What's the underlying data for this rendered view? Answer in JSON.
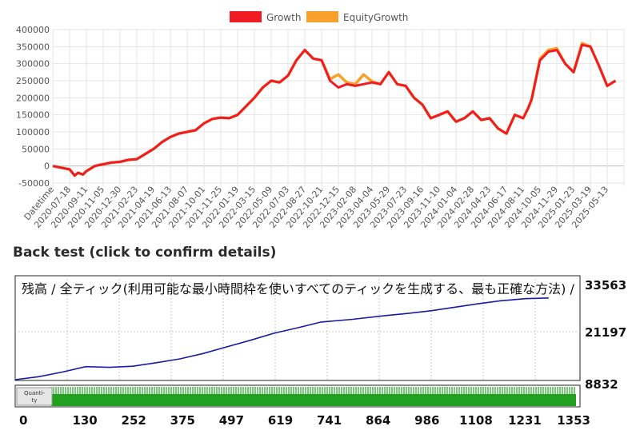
{
  "chart_data": [
    {
      "type": "line",
      "legend": {
        "position": "top",
        "entries": [
          {
            "name": "Growth",
            "color": "#f01c24"
          },
          {
            "name": "EquityGrowth",
            "color": "#f7a12c"
          }
        ]
      },
      "x_tick_labels": [
        "Datetime",
        "2020-07-18",
        "2020-09-11",
        "2020-11-05",
        "2020-12-30",
        "2021-02-23",
        "2021-04-19",
        "2021-06-13",
        "2021-08-07",
        "2021-10-01",
        "2021-11-25",
        "2022-01-19",
        "2022-03-15",
        "2022-05-09",
        "2022-07-03",
        "2022-08-27",
        "2022-10-21",
        "2022-12-15",
        "2023-02-08",
        "2023-04-04",
        "2023-05-29",
        "2023-07-23",
        "2023-09-16",
        "2023-11-10",
        "2024-01-04",
        "2024-02-28",
        "2024-04-23",
        "2024-06-17",
        "2024-08-11",
        "2024-10-05",
        "2024-11-29",
        "2025-01-23",
        "2025-03-19",
        "2025-05-13"
      ],
      "y_ticks": [
        400000,
        350000,
        300000,
        250000,
        200000,
        150000,
        100000,
        50000,
        0,
        -50000
      ],
      "ylim": [
        -50000,
        400000
      ],
      "grid": true,
      "series": [
        {
          "name": "Growth",
          "color": "#f01c24",
          "x": [
            0,
            0.5,
            1,
            1.3,
            1.5,
            1.8,
            2,
            2.5,
            3,
            3.5,
            4,
            4.5,
            5,
            5.5,
            6,
            6.5,
            7,
            7.5,
            8,
            8.5,
            9,
            9.5,
            10,
            10.5,
            11,
            11.5,
            12,
            12.5,
            13,
            13.5,
            14,
            14.5,
            15,
            15.5,
            16,
            16.5,
            17,
            17.5,
            18,
            18.5,
            19,
            19.5,
            20,
            20.5,
            21,
            21.5,
            22,
            22.5,
            23,
            23.5,
            24,
            24.5,
            25,
            25.5,
            26,
            26.5,
            27,
            27.5,
            28,
            28.3,
            28.5,
            29,
            29.5,
            30,
            30.5,
            31,
            31.5,
            32,
            32.5,
            33,
            33.5
          ],
          "values": [
            0,
            -5000,
            -10000,
            -28000,
            -20000,
            -25000,
            -15000,
            0,
            5000,
            10000,
            12000,
            18000,
            20000,
            35000,
            50000,
            70000,
            85000,
            95000,
            100000,
            105000,
            125000,
            138000,
            142000,
            140000,
            150000,
            175000,
            200000,
            230000,
            250000,
            245000,
            265000,
            310000,
            340000,
            315000,
            310000,
            250000,
            230000,
            240000,
            235000,
            240000,
            245000,
            240000,
            275000,
            240000,
            235000,
            200000,
            180000,
            140000,
            150000,
            160000,
            130000,
            140000,
            160000,
            135000,
            140000,
            110000,
            95000,
            150000,
            140000,
            170000,
            195000,
            310000,
            335000,
            340000,
            300000,
            275000,
            355000,
            350000,
            295000,
            235000,
            250000
          ]
        },
        {
          "name": "EquityGrowth",
          "color": "#f7a12c",
          "x": [
            0,
            0.5,
            1,
            1.3,
            1.5,
            1.8,
            2,
            2.5,
            3,
            3.5,
            4,
            4.5,
            5,
            5.5,
            6,
            6.5,
            7,
            7.5,
            8,
            8.5,
            9,
            9.5,
            10,
            10.5,
            11,
            11.5,
            12,
            12.5,
            13,
            13.5,
            14,
            14.5,
            15,
            15.5,
            16,
            16.5,
            17,
            17.5,
            18,
            18.5,
            19,
            19.5,
            20,
            20.5,
            21,
            21.5,
            22,
            22.5,
            23,
            23.5,
            24,
            24.5,
            25,
            25.5,
            26,
            26.5,
            27,
            27.5,
            28,
            28.3,
            28.5,
            29,
            29.5,
            30,
            30.5,
            31,
            31.5,
            32,
            32.5,
            33,
            33.5
          ],
          "values": [
            0,
            -5000,
            -10000,
            -28000,
            -20000,
            -25000,
            -15000,
            0,
            5000,
            10000,
            12000,
            18000,
            20000,
            35000,
            50000,
            70000,
            85000,
            95000,
            100000,
            105000,
            125000,
            138000,
            142000,
            140000,
            150000,
            175000,
            200000,
            230000,
            250000,
            245000,
            265000,
            310000,
            340000,
            315000,
            310000,
            255000,
            268000,
            245000,
            240000,
            268000,
            248000,
            240000,
            275000,
            240000,
            235000,
            200000,
            180000,
            140000,
            150000,
            160000,
            130000,
            140000,
            160000,
            135000,
            140000,
            110000,
            95000,
            150000,
            140000,
            170000,
            195000,
            315000,
            340000,
            345000,
            300000,
            275000,
            360000,
            350000,
            295000,
            235000,
            250000
          ]
        }
      ]
    },
    {
      "type": "line",
      "title": "残高 / 全ティック(利用可能な最小時間枠を使いすべてのティックを生成する、最も正確な方法) /",
      "section_heading": "Back test (click to confirm details)",
      "y_tick_labels": [
        "33563",
        "21197",
        "8832"
      ],
      "ylim": [
        8832,
        33563
      ],
      "x_tick_labels": [
        "0",
        "130",
        "252",
        "375",
        "497",
        "619",
        "741",
        "864",
        "986",
        "1108",
        "1231",
        "1353"
      ],
      "xlim": [
        0,
        1440
      ],
      "sub_panel_label": "Quanti-ty",
      "series": [
        {
          "name": "",
          "color": "#1a1aa6",
          "x": [
            0,
            60,
            120,
            180,
            240,
            300,
            360,
            420,
            480,
            540,
            600,
            660,
            720,
            780,
            860,
            940,
            1000,
            1060,
            1120,
            1180,
            1240,
            1300,
            1360
          ],
          "values": [
            8832,
            9600,
            10800,
            12200,
            12000,
            12300,
            13200,
            14200,
            15600,
            17300,
            19000,
            20800,
            22200,
            23700,
            24400,
            25300,
            25900,
            26600,
            27500,
            28400,
            29200,
            29700,
            29900
          ]
        }
      ]
    }
  ]
}
